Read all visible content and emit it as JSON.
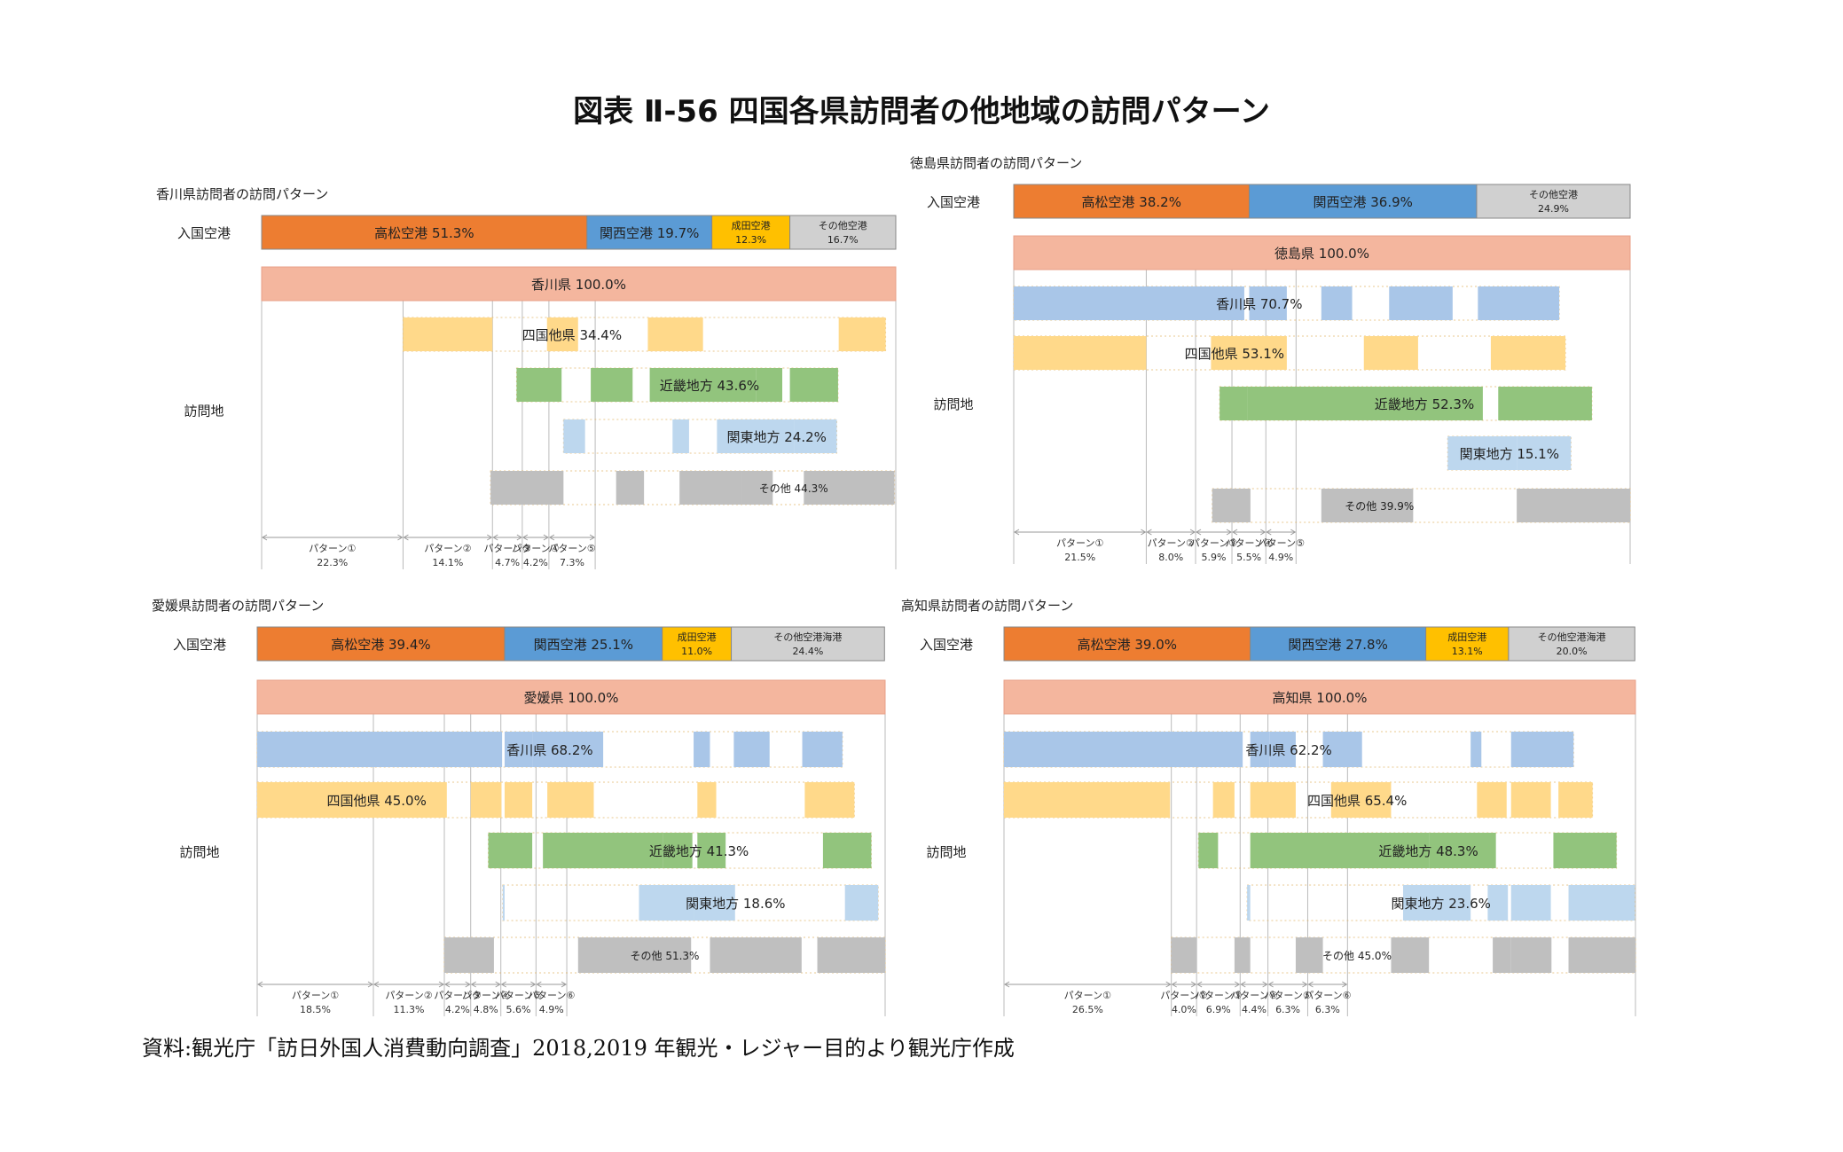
{
  "title": "図表 Ⅱ-56 四国各県訪問者の他地域の訪問パターン",
  "source": "資料:観光庁「訪日外国人消費動向調査」2018,2019 年観光・レジャー目的より観光庁作成",
  "colors": {
    "takamatsu": "#ed7d31",
    "kansai": "#5b9bd5",
    "narita": "#ffc000",
    "other_airport": "#d0d0d0",
    "pref": "#f4b69e",
    "kagawa": "#a9c6e8",
    "shikoku_other": "#ffd98a",
    "kinki": "#92c47d",
    "kanto": "#bdd7ee",
    "sonota": "#bfbfbf",
    "grid": "#bbbbbb",
    "dotted": "#e0b060"
  },
  "chart_data": [
    {
      "type": "bar",
      "panel": "kagawa",
      "title": "香川県訪問者の訪問パターン",
      "row_labels": {
        "airport": "入国空港",
        "visit": "訪問地"
      },
      "airports": [
        {
          "label": "高松空港",
          "value": 51.3,
          "color": "#ed7d31",
          "small": false
        },
        {
          "label": "関西空港",
          "value": 19.7,
          "color": "#5b9bd5",
          "small": false
        },
        {
          "label": "成田空港",
          "value": 12.3,
          "color": "#ffc000",
          "small": true
        },
        {
          "label": "その他空港",
          "value": 16.7,
          "color": "#d0d0d0",
          "small": true
        }
      ],
      "prefecture": {
        "label": "香川県",
        "value": 100.0
      },
      "visits": [
        {
          "label": "四国他県",
          "value": 34.4,
          "color": "#ffd98a",
          "small": false,
          "label_at": 0.35,
          "segments": [
            [
              22.3,
              36.4
            ],
            [
              45.0,
              49.9
            ],
            [
              60.9,
              69.6
            ],
            [
              91.0,
              98.4
            ]
          ]
        },
        {
          "label": "近畿地方",
          "value": 43.6,
          "color": "#92c47d",
          "small": false,
          "label_at": 0.6,
          "segments": [
            [
              40.2,
              47.3
            ],
            [
              51.9,
              58.5
            ],
            [
              61.2,
              78.0
            ],
            [
              78.0,
              82.1
            ],
            [
              83.3,
              90.9
            ]
          ]
        },
        {
          "label": "関東地方",
          "value": 24.2,
          "color": "#bdd7ee",
          "small": false,
          "label_at": 0.78,
          "segments": [
            [
              47.6,
              51.0
            ],
            [
              64.8,
              67.4
            ],
            [
              71.8,
              84.0
            ],
            [
              84.0,
              90.7
            ]
          ]
        },
        {
          "label": "その他",
          "value": 44.3,
          "color": "#bfbfbf",
          "small": true,
          "label_at": 0.75,
          "segments": [
            [
              36.1,
              47.6
            ],
            [
              55.9,
              60.3
            ],
            [
              65.9,
              75.8
            ],
            [
              75.8,
              80.6
            ],
            [
              85.5,
              99.8
            ]
          ]
        }
      ],
      "patterns": [
        {
          "label": "パターン①",
          "value": 22.3
        },
        {
          "label": "パターン②",
          "value": 14.1
        },
        {
          "label": "パターン③",
          "value": 4.7
        },
        {
          "label": "パターン④",
          "value": 4.2
        },
        {
          "label": "パターン⑤",
          "value": 7.3
        }
      ]
    },
    {
      "type": "bar",
      "panel": "tokushima",
      "title": "徳島県訪問者の訪問パターン",
      "row_labels": {
        "airport": "入国空港",
        "visit": "訪問地"
      },
      "airports": [
        {
          "label": "高松空港",
          "value": 38.2,
          "color": "#ed7d31",
          "small": false
        },
        {
          "label": "関西空港",
          "value": 36.9,
          "color": "#5b9bd5",
          "small": false
        },
        {
          "label": "その他空港",
          "value": 24.9,
          "color": "#d0d0d0",
          "small": true
        }
      ],
      "prefecture": {
        "label": "徳島県",
        "value": 100.0
      },
      "visits": [
        {
          "label": "香川県",
          "value": 70.7,
          "color": "#a9c6e8",
          "small": false,
          "label_at": 0.45,
          "segments": [
            [
              0,
              37.4
            ],
            [
              38.2,
              44.3
            ],
            [
              49.9,
              54.9
            ],
            [
              60.9,
              71.2
            ],
            [
              75.3,
              88.5
            ]
          ]
        },
        {
          "label": "四国他県",
          "value": 53.1,
          "color": "#ffd98a",
          "small": false,
          "label_at": 0.4,
          "segments": [
            [
              0,
              21.5
            ],
            [
              32.0,
              38.2
            ],
            [
              38.2,
              44.3
            ],
            [
              56.8,
              65.6
            ],
            [
              77.4,
              89.5
            ]
          ]
        },
        {
          "label": "近畿地方",
          "value": 52.3,
          "color": "#92c47d",
          "small": false,
          "label_at": 0.55,
          "segments": [
            [
              33.4,
              37.9
            ],
            [
              37.9,
              76.1
            ],
            [
              78.6,
              93.8
            ]
          ]
        },
        {
          "label": "関東地方",
          "value": 15.1,
          "color": "#bdd7ee",
          "small": false,
          "label_at": 0.5,
          "segments": [
            [
              70.4,
              81.6
            ],
            [
              81.6,
              90.4
            ]
          ]
        },
        {
          "label": "その他",
          "value": 39.9,
          "color": "#bfbfbf",
          "small": true,
          "label_at": 0.4,
          "segments": [
            [
              32.2,
              38.4
            ],
            [
              49.9,
              64.8
            ],
            [
              81.6,
              100.0
            ]
          ]
        }
      ],
      "patterns": [
        {
          "label": "パターン①",
          "value": 21.5
        },
        {
          "label": "パターン②",
          "value": 8.0
        },
        {
          "label": "パターン③",
          "value": 5.9
        },
        {
          "label": "パターン④",
          "value": 5.5
        },
        {
          "label": "パターン⑤",
          "value": 4.9
        }
      ]
    },
    {
      "type": "bar",
      "panel": "ehime",
      "title": "愛媛県訪問者の訪問パターン",
      "row_labels": {
        "airport": "入国空港",
        "visit": "訪問地"
      },
      "airports": [
        {
          "label": "高松空港",
          "value": 39.4,
          "color": "#ed7d31",
          "small": false
        },
        {
          "label": "関西空港",
          "value": 25.1,
          "color": "#5b9bd5",
          "small": false
        },
        {
          "label": "成田空港",
          "value": 11.0,
          "color": "#ffc000",
          "small": true
        },
        {
          "label": "その他空港海港",
          "value": 24.4,
          "color": "#d0d0d0",
          "small": true
        }
      ],
      "prefecture": {
        "label": "愛媛県",
        "value": 100.0
      },
      "visits": [
        {
          "label": "香川県",
          "value": 68.2,
          "color": "#a9c6e8",
          "small": false,
          "label_at": 0.5,
          "segments": [
            [
              0,
              39.0
            ],
            [
              39.4,
              43.8
            ],
            [
              43.8,
              55.1
            ],
            [
              69.5,
              72.1
            ],
            [
              75.9,
              81.6
            ],
            [
              86.8,
              93.2
            ]
          ]
        },
        {
          "label": "四国他県",
          "value": 45.0,
          "color": "#ffd98a",
          "small": false,
          "label_at": 0.2,
          "segments": [
            [
              0,
              30.2
            ],
            [
              34.0,
              38.9
            ],
            [
              39.4,
              43.8
            ],
            [
              46.2,
              53.6
            ],
            [
              70.1,
              73.1
            ],
            [
              87.2,
              95.1
            ]
          ]
        },
        {
          "label": "近畿地方",
          "value": 41.3,
          "color": "#92c47d",
          "small": false,
          "label_at": 0.55,
          "segments": [
            [
              36.8,
              43.8
            ],
            [
              45.5,
              64.6
            ],
            [
              64.6,
              69.3
            ],
            [
              70.1,
              74.6
            ],
            [
              90.1,
              97.8
            ]
          ]
        },
        {
          "label": "関東地方",
          "value": 18.6,
          "color": "#bdd7ee",
          "small": false,
          "label_at": 0.62,
          "segments": [
            [
              39.1,
              39.4
            ],
            [
              60.8,
              69.5
            ],
            [
              69.5,
              76.1
            ],
            [
              93.6,
              98.9
            ]
          ]
        },
        {
          "label": "その他",
          "value": 51.3,
          "color": "#bfbfbf",
          "small": true,
          "label_at": 0.5,
          "segments": [
            [
              29.8,
              37.7
            ],
            [
              51.1,
              69.1
            ],
            [
              72.1,
              86.7
            ],
            [
              89.2,
              100.0
            ]
          ]
        }
      ],
      "patterns": [
        {
          "label": "パターン①",
          "value": 18.5
        },
        {
          "label": "パターン②",
          "value": 11.3
        },
        {
          "label": "パターン③",
          "value": 4.2
        },
        {
          "label": "パターン④",
          "value": 4.8
        },
        {
          "label": "パターン⑤",
          "value": 5.6
        },
        {
          "label": "パターン⑥",
          "value": 4.9
        }
      ]
    },
    {
      "type": "bar",
      "panel": "kochi",
      "title": "高知県訪問者の訪問パターン",
      "row_labels": {
        "airport": "入国空港",
        "visit": "訪問地"
      },
      "airports": [
        {
          "label": "高松空港",
          "value": 39.0,
          "color": "#ed7d31",
          "small": false
        },
        {
          "label": "関西空港",
          "value": 27.8,
          "color": "#5b9bd5",
          "small": false
        },
        {
          "label": "成田空港",
          "value": 13.1,
          "color": "#ffc000",
          "small": true
        },
        {
          "label": "その他空港海港",
          "value": 20.0,
          "color": "#d0d0d0",
          "small": true
        }
      ],
      "prefecture": {
        "label": "高知県",
        "value": 100.0
      },
      "visits": [
        {
          "label": "香川県",
          "value": 62.2,
          "color": "#a9c6e8",
          "small": false,
          "label_at": 0.5,
          "segments": [
            [
              0,
              37.8
            ],
            [
              39.0,
              42.1
            ],
            [
              42.1,
              46.2
            ],
            [
              50.5,
              56.7
            ],
            [
              73.9,
              75.6
            ],
            [
              80.3,
              90.2
            ]
          ]
        },
        {
          "label": "四国他県",
          "value": 65.4,
          "color": "#ffd98a",
          "small": false,
          "label_at": 0.6,
          "segments": [
            [
              0,
              26.3
            ],
            [
              33.1,
              36.5
            ],
            [
              39.0,
              46.2
            ],
            [
              51.8,
              61.3
            ],
            [
              74.9,
              79.6
            ],
            [
              80.3,
              86.6
            ],
            [
              87.8,
              93.2
            ]
          ]
        },
        {
          "label": "近畿地方",
          "value": 48.3,
          "color": "#92c47d",
          "small": false,
          "label_at": 0.55,
          "segments": [
            [
              30.8,
              33.9
            ],
            [
              39.0,
              67.4
            ],
            [
              67.4,
              77.9
            ],
            [
              87.0,
              97.0
            ]
          ]
        },
        {
          "label": "関東地方",
          "value": 23.6,
          "color": "#bdd7ee",
          "small": false,
          "label_at": 0.5,
          "segments": [
            [
              38.5,
              39.0
            ],
            [
              63.2,
              73.9
            ],
            [
              76.6,
              79.8
            ],
            [
              80.3,
              86.6
            ],
            [
              89.4,
              99.9
            ]
          ]
        },
        {
          "label": "その他",
          "value": 45.0,
          "color": "#bfbfbf",
          "small": true,
          "label_at": 0.4,
          "segments": [
            [
              26.5,
              30.5
            ],
            [
              36.5,
              39.0
            ],
            [
              46.2,
              50.5
            ],
            [
              61.3,
              67.3
            ],
            [
              77.4,
              80.3
            ],
            [
              80.3,
              86.7
            ],
            [
              89.4,
              100.0
            ]
          ]
        }
      ],
      "patterns": [
        {
          "label": "パターン①",
          "value": 26.5
        },
        {
          "label": "パターン②",
          "value": 4.0
        },
        {
          "label": "パターン③",
          "value": 6.9
        },
        {
          "label": "パターン④",
          "value": 4.4
        },
        {
          "label": "パターン⑤",
          "value": 6.3
        },
        {
          "label": "パターン⑥",
          "value": 6.3
        }
      ]
    }
  ]
}
